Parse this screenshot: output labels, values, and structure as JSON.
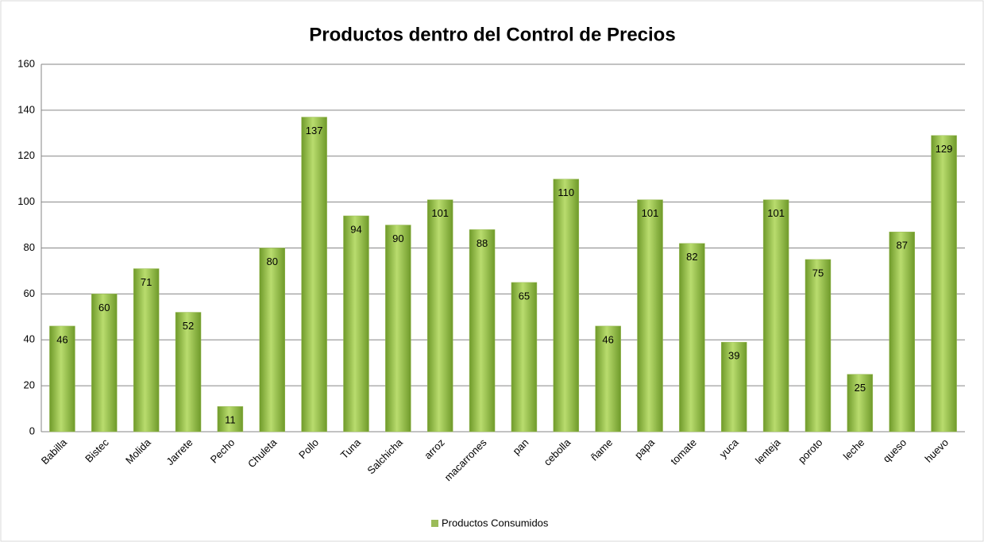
{
  "chart_data": {
    "type": "bar",
    "title": "Productos dentro del Control de Precios",
    "categories": [
      "Babilla",
      "Bistec",
      "Molida",
      "Jarrete",
      "Pecho",
      "Chuleta",
      "Pollo",
      "Tuna",
      "Salchicha",
      "arroz",
      "macarrones",
      "pan",
      "cebolla",
      "ñame",
      "papa",
      "tomate",
      "yuca",
      "lenteja",
      "poroto",
      "leche",
      "queso",
      "huevo"
    ],
    "series": [
      {
        "name": "Productos Consumidos",
        "color": "#9bbb59",
        "values": [
          46,
          60,
          71,
          52,
          11,
          80,
          137,
          94,
          90,
          101,
          88,
          65,
          110,
          46,
          101,
          82,
          39,
          101,
          75,
          25,
          87,
          129
        ]
      }
    ],
    "ylim": [
      0,
      160
    ],
    "yticks": [
      0,
      20,
      40,
      60,
      80,
      100,
      120,
      140,
      160
    ],
    "grid": true,
    "legend": "bottom"
  }
}
